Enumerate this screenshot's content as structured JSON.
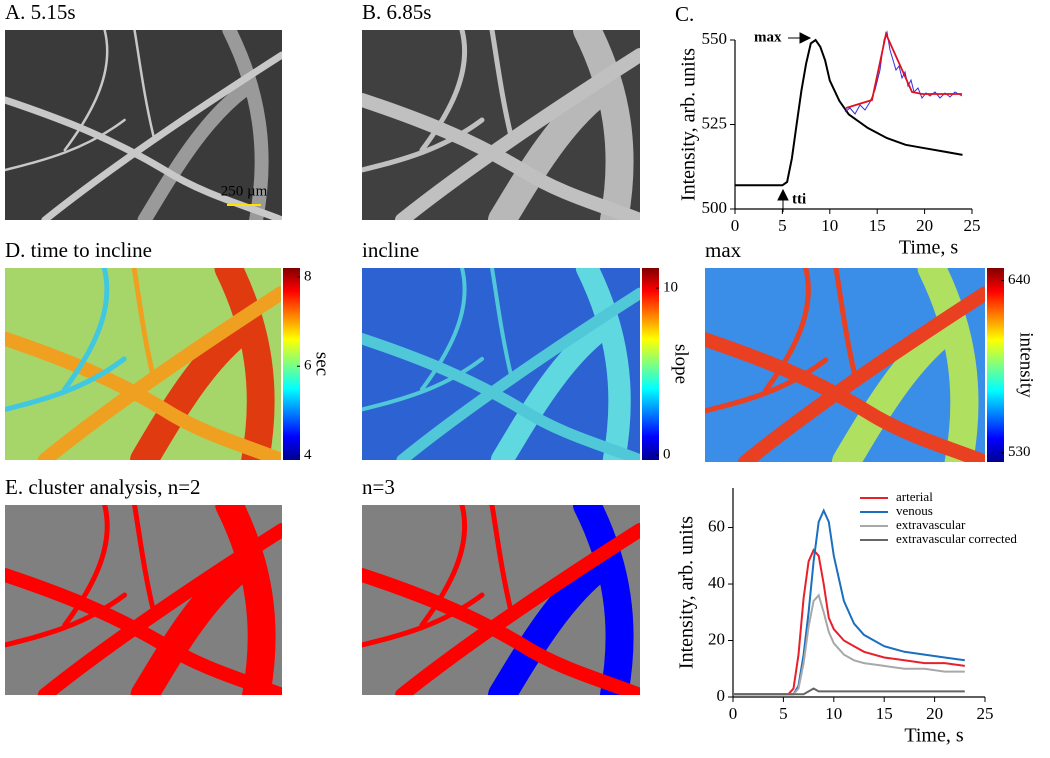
{
  "panels": [
    {
      "label": "A. 5.15s",
      "scale_bar": "250 µm"
    },
    {
      "label": "B. 6.85s"
    },
    {
      "label": "D. time to incline",
      "colorbar": {
        "label": "sec",
        "lim": [
          3.9,
          8.2
        ],
        "ticks": [
          4,
          6,
          8
        ]
      }
    },
    {
      "label": "incline",
      "colorbar": {
        "label": "slope",
        "lim": [
          -0.3,
          11.2
        ],
        "ticks": [
          0,
          10
        ]
      }
    },
    {
      "label": "max",
      "colorbar": {
        "label": "intensity",
        "lim": [
          524,
          648
        ],
        "ticks": [
          530,
          640
        ]
      }
    },
    {
      "label": "E. cluster analysis, n=2"
    },
    {
      "label": "n=3"
    }
  ],
  "chart_data": [
    {
      "type": "line",
      "title": "C.",
      "x_label": "Time, s",
      "y_label": "Intensity, arb. units",
      "annotations": [
        "max",
        "tti"
      ],
      "xlim": [
        0,
        25
      ],
      "xticks": [
        0,
        5,
        10,
        15,
        20,
        25
      ],
      "ylim": [
        500,
        550
      ],
      "yticks": [
        500,
        525,
        550
      ],
      "x": [
        0,
        2,
        4,
        5,
        5.5,
        6,
        6.5,
        7,
        7.5,
        8,
        8.5,
        9,
        9.5,
        10,
        11,
        12,
        14,
        16,
        18,
        20,
        22,
        24
      ],
      "series": [
        {
          "color": "#000000",
          "values": [
            507,
            507,
            507,
            507,
            508,
            515,
            525,
            535,
            543,
            549,
            550,
            548,
            544,
            538,
            532,
            528,
            524,
            521,
            519,
            518,
            517,
            516
          ]
        }
      ]
    },
    {
      "type": "line",
      "x_label": "Time, s",
      "y_label": "Intensity, arb. units",
      "legend": "upper right",
      "xlim": [
        0,
        25
      ],
      "xticks": [
        0,
        5,
        10,
        15,
        20,
        25
      ],
      "ylim": [
        0,
        74
      ],
      "yticks": [
        0,
        20,
        40,
        60
      ],
      "x": [
        0,
        2,
        4,
        5,
        5.5,
        6,
        6.5,
        7,
        7.5,
        8,
        8.5,
        9,
        9.5,
        10,
        11,
        12,
        13,
        15,
        17,
        19,
        21,
        23
      ],
      "series": [
        {
          "name": "arterial",
          "color": "#e8202a",
          "values": [
            1,
            1,
            1,
            1,
            1,
            3,
            15,
            35,
            48,
            52,
            50,
            40,
            28,
            24,
            20,
            18,
            16,
            14,
            13,
            12,
            12,
            11
          ]
        },
        {
          "name": "venous",
          "color": "#1a6fc0",
          "values": [
            1,
            1,
            1,
            1,
            1,
            1,
            4,
            15,
            30,
            48,
            62,
            66,
            62,
            50,
            34,
            26,
            22,
            18,
            16,
            15,
            14,
            13
          ]
        },
        {
          "name": "extravascular",
          "color": "#a8a8a8",
          "values": [
            1,
            1,
            1,
            1,
            1,
            1,
            3,
            12,
            25,
            34,
            36,
            30,
            23,
            19,
            15,
            13,
            12,
            11,
            10,
            10,
            9,
            9
          ]
        },
        {
          "name": "extravascular corrected",
          "color": "#666666",
          "values": [
            1,
            1,
            1,
            1,
            1,
            1,
            1,
            1,
            2,
            3,
            2,
            2,
            2,
            2,
            2,
            2,
            2,
            2,
            2,
            2,
            2,
            2
          ]
        }
      ]
    }
  ]
}
